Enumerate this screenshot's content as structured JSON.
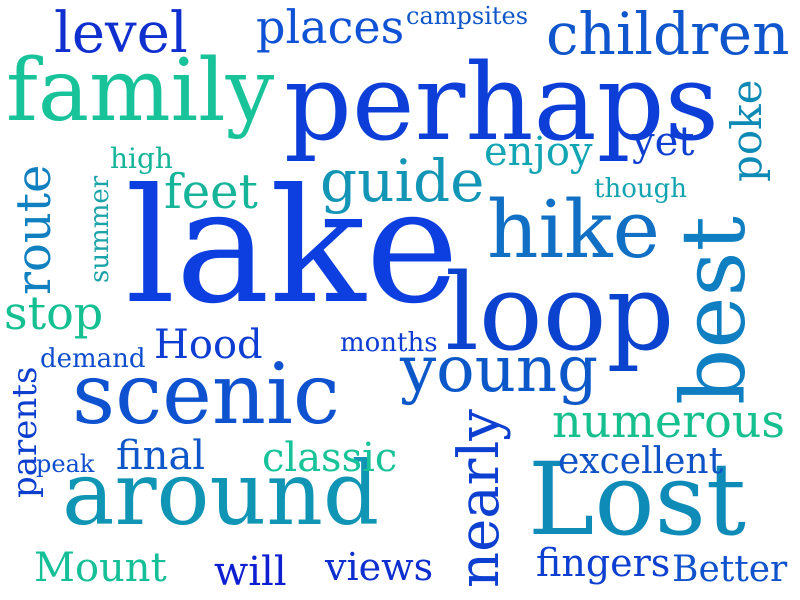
{
  "words": [
    {
      "text": "lake",
      "color": "#0d3fe0"
    },
    {
      "text": "perhaps",
      "color": "#0d3fd8"
    },
    {
      "text": "family",
      "color": "#19c39a"
    },
    {
      "text": "around",
      "color": "#1095b5"
    },
    {
      "text": "scenic",
      "color": "#0f52cf"
    },
    {
      "text": "loop",
      "color": "#0b43cf"
    },
    {
      "text": "Lost",
      "color": "#0f8bb8"
    },
    {
      "text": "best",
      "color": "#0f7fc2"
    },
    {
      "text": "hike",
      "color": "#1170c4"
    },
    {
      "text": "young",
      "color": "#0d58c9"
    },
    {
      "text": "nearly",
      "color": "#0d3fd0"
    },
    {
      "text": "children",
      "color": "#0f55cc"
    },
    {
      "text": "guide",
      "color": "#1396b5"
    },
    {
      "text": "level",
      "color": "#0f2fce"
    },
    {
      "text": "places",
      "color": "#0f52d6"
    },
    {
      "text": "route",
      "color": "#1080c0"
    },
    {
      "text": "numerous",
      "color": "#15bf8e"
    },
    {
      "text": "feet",
      "color": "#16b59a"
    },
    {
      "text": "stop",
      "color": "#14bf92"
    },
    {
      "text": "Hood",
      "color": "#0e3dd4"
    },
    {
      "text": "classic",
      "color": "#19c39a"
    },
    {
      "text": "final",
      "color": "#0e57c8"
    },
    {
      "text": "excellent",
      "color": "#0f52c6"
    },
    {
      "text": "enjoy",
      "color": "#13a5b4"
    },
    {
      "text": "poke",
      "color": "#0e8ab5"
    },
    {
      "text": "yet",
      "color": "#0f3fd0"
    },
    {
      "text": "parents",
      "color": "#0d3fcf"
    },
    {
      "text": "fingers",
      "color": "#0d3fd0"
    },
    {
      "text": "Better",
      "color": "#0f52cc"
    },
    {
      "text": "views",
      "color": "#0e2fd0"
    },
    {
      "text": "will",
      "color": "#0d1fd0"
    },
    {
      "text": "Mount",
      "color": "#15bf98"
    },
    {
      "text": "campsites",
      "color": "#0f57c8"
    },
    {
      "text": "though",
      "color": "#14a3b0"
    },
    {
      "text": "summer",
      "color": "#1aa3a8"
    },
    {
      "text": "high",
      "color": "#16b59a"
    },
    {
      "text": "demand",
      "color": "#0f4fcf"
    },
    {
      "text": "months",
      "color": "#0e3dd4"
    },
    {
      "text": "peak",
      "color": "#0f4fcf"
    }
  ]
}
